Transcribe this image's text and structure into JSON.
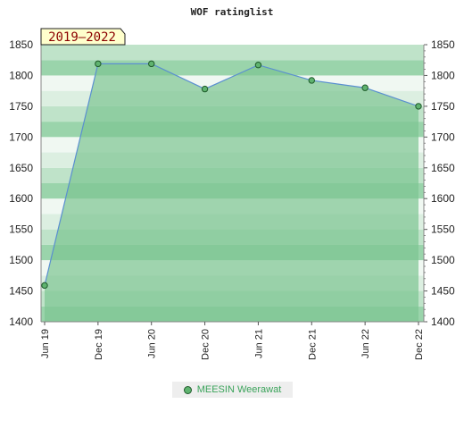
{
  "chart_data": {
    "type": "area",
    "title": "WOF ratinglist",
    "badge": "2019–2022",
    "x": [
      "Jun 19",
      "Dec 19",
      "Jun 20",
      "Dec 20",
      "Jun 21",
      "Dec 21",
      "Jun 22",
      "Dec 22"
    ],
    "series": [
      {
        "name": "MEESIN Weerawat",
        "values": [
          1459,
          1819,
          1819,
          1778,
          1817,
          1792,
          1780,
          1750
        ]
      }
    ],
    "ylim": [
      1400,
      1850
    ],
    "yticks": [
      1400,
      1450,
      1500,
      1550,
      1600,
      1650,
      1700,
      1750,
      1800,
      1850
    ],
    "right_axis": true,
    "colors": {
      "fill": "#7cc592",
      "line": "#5a8fd0",
      "marker": "#5fb36f",
      "marker_edge": "#1e5a2a"
    }
  }
}
